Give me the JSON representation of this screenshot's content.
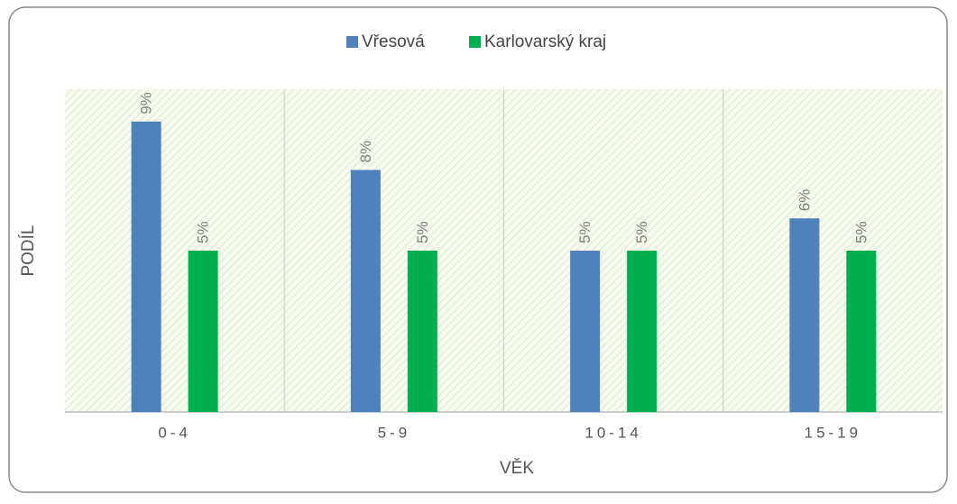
{
  "chart_data": {
    "type": "bar",
    "categories": [
      "0-4",
      "5-9",
      "10-14",
      "15-19"
    ],
    "series": [
      {
        "name": "Vřesová",
        "color": "#4f81bd",
        "values": [
          9,
          7.5,
          5,
          6
        ],
        "value_labels": [
          "9%",
          "8%",
          "5%",
          "6%"
        ]
      },
      {
        "name": "Karlovarský kraj",
        "color": "#00b050",
        "values": [
          5,
          5,
          5,
          5
        ],
        "value_labels": [
          "5%",
          "5%",
          "5%",
          "5%"
        ]
      }
    ],
    "ylim": [
      0,
      10
    ],
    "x_label": "VĚK",
    "y_label": "PODÍL",
    "legend": "top"
  }
}
